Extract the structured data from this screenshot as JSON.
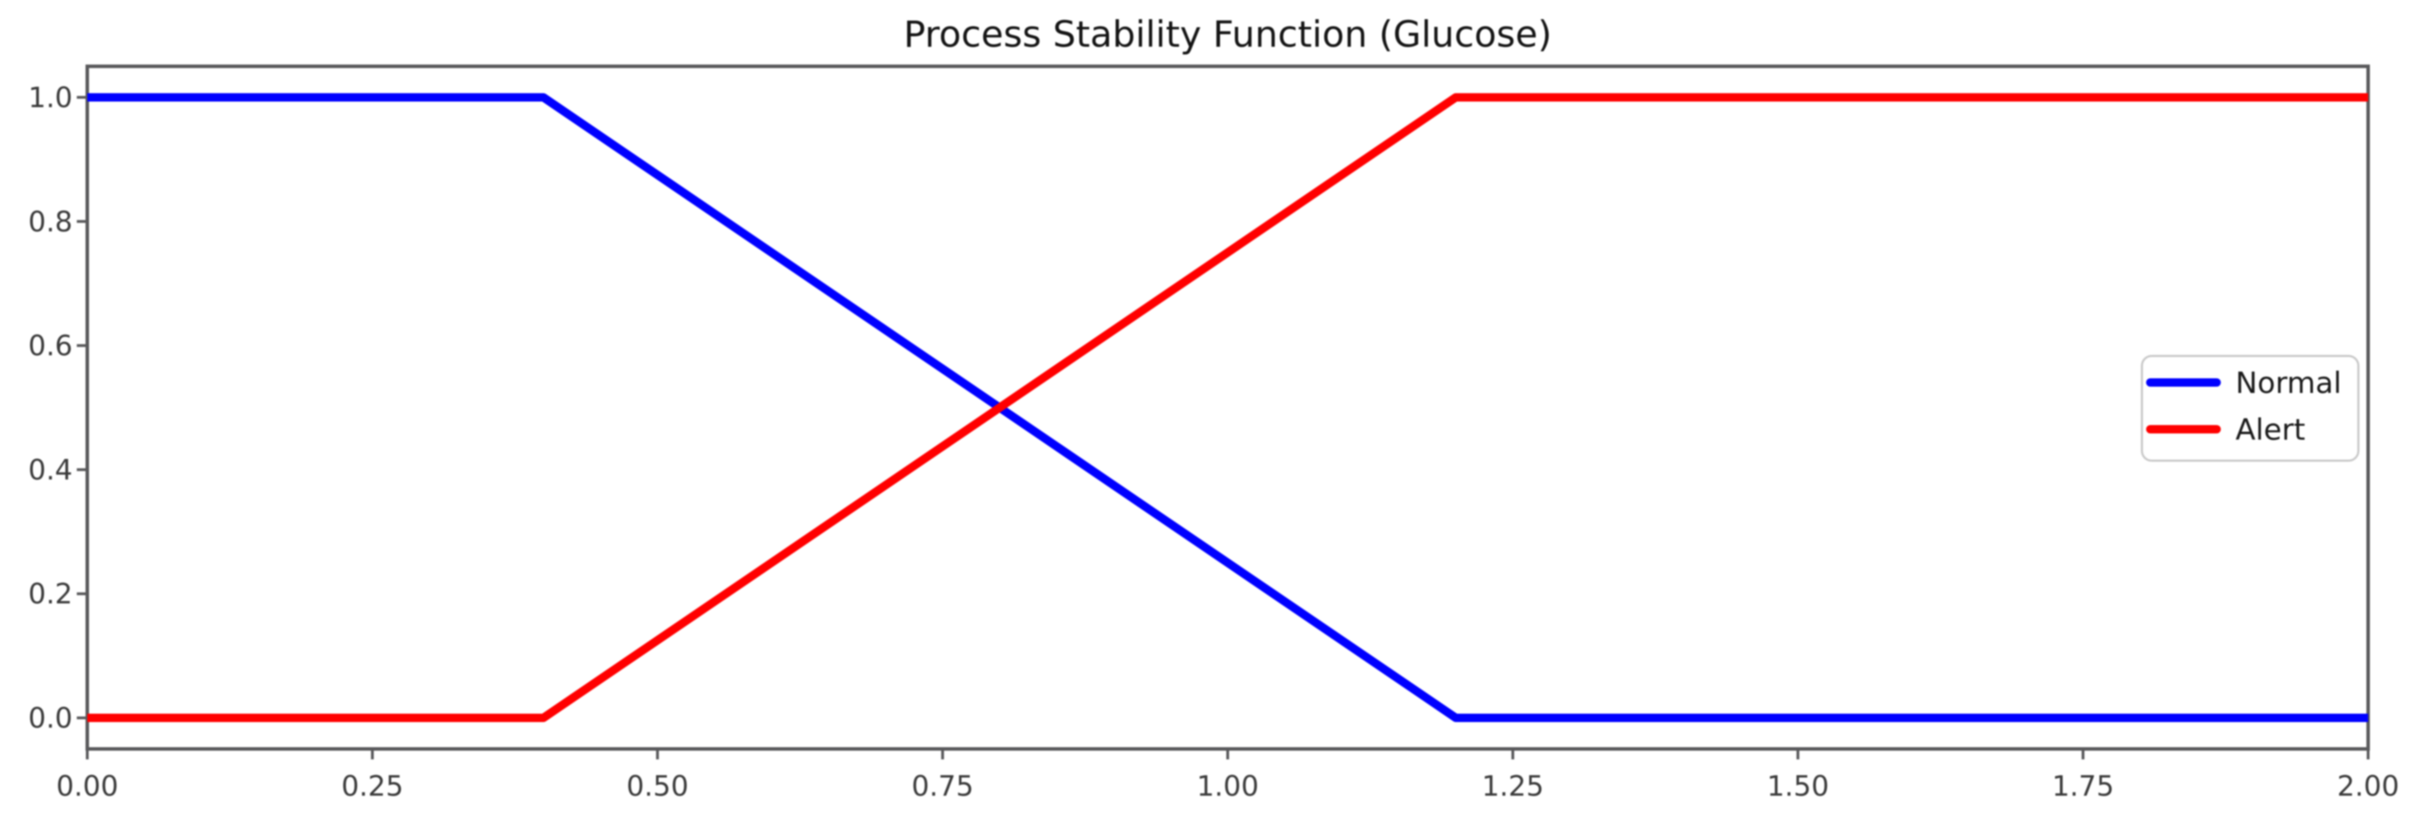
{
  "chart_data": {
    "type": "line",
    "title": "Process Stability Function (Glucose)",
    "xlabel": "",
    "ylabel": "",
    "xlim": [
      0.0,
      2.0
    ],
    "ylim": [
      -0.05,
      1.05
    ],
    "grid": false,
    "x_ticks": {
      "values": [
        0.0,
        0.25,
        0.5,
        0.75,
        1.0,
        1.25,
        1.5,
        1.75,
        2.0
      ],
      "labels": [
        "0.00",
        "0.25",
        "0.50",
        "0.75",
        "1.00",
        "1.25",
        "1.50",
        "1.75",
        "2.00"
      ]
    },
    "y_ticks": {
      "values": [
        0.0,
        0.2,
        0.4,
        0.6,
        0.8,
        1.0
      ],
      "labels": [
        "0.0",
        "0.2",
        "0.4",
        "0.6",
        "0.8",
        "1.0"
      ]
    },
    "series": [
      {
        "name": "Normal",
        "color": "#0000ff",
        "points": [
          [
            0.0,
            1.0
          ],
          [
            0.4,
            1.0
          ],
          [
            1.2,
            0.0
          ],
          [
            2.0,
            0.0
          ]
        ]
      },
      {
        "name": "Alert",
        "color": "#ff0000",
        "points": [
          [
            0.0,
            0.0
          ],
          [
            0.4,
            0.0
          ],
          [
            1.2,
            1.0
          ],
          [
            2.0,
            1.0
          ]
        ]
      }
    ],
    "legend": {
      "position": "center-right",
      "entries": [
        "Normal",
        "Alert"
      ]
    },
    "colors": {
      "axes": "#59595b",
      "tick_labels": "#3a3a3a",
      "title": "#141414",
      "legend_border": "#c9c9c9",
      "legend_background": "#ffffff",
      "plot_background": "#ffffff"
    }
  }
}
